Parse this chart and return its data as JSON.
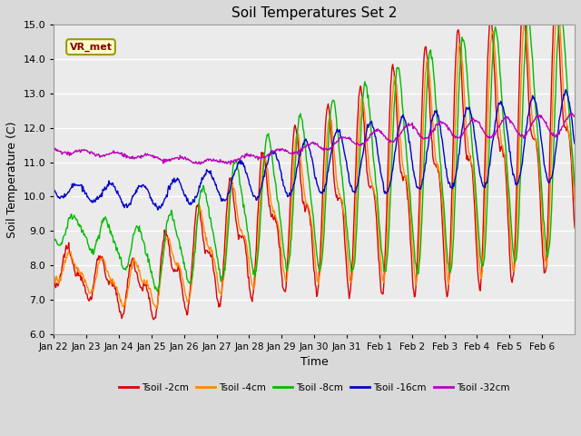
{
  "title": "Soil Temperatures Set 2",
  "xlabel": "Time",
  "ylabel": "Soil Temperature (C)",
  "ylim": [
    6.0,
    15.0
  ],
  "ytick_labels": [
    "6.0",
    "7.0",
    "8.0",
    "9.0",
    "10.0",
    "11.0",
    "12.0",
    "13.0",
    "14.0",
    "15.0"
  ],
  "yticks": [
    6.0,
    7.0,
    8.0,
    9.0,
    10.0,
    11.0,
    12.0,
    13.0,
    14.0,
    15.0
  ],
  "xtick_labels": [
    "Jan 22",
    "Jan 23",
    "Jan 24",
    "Jan 25",
    "Jan 26",
    "Jan 27",
    "Jan 28",
    "Jan 29",
    "Jan 30",
    "Jan 31",
    "Feb 1",
    "Feb 2",
    "Feb 3",
    "Feb 4",
    "Feb 5",
    "Feb 6"
  ],
  "line_colors": [
    "#dd0000",
    "#ff8800",
    "#00bb00",
    "#0000cc",
    "#bb00bb"
  ],
  "line_labels": [
    "Tsoil -2cm",
    "Tsoil -4cm",
    "Tsoil -8cm",
    "Tsoil -16cm",
    "Tsoil -32cm"
  ],
  "annotation_text": "VR_met",
  "bg_color": "#d9d9d9",
  "plot_bg_color": "#ebebeb",
  "grid_color": "#ffffff",
  "title_fontsize": 11,
  "axis_fontsize": 9,
  "tick_fontsize": 8
}
